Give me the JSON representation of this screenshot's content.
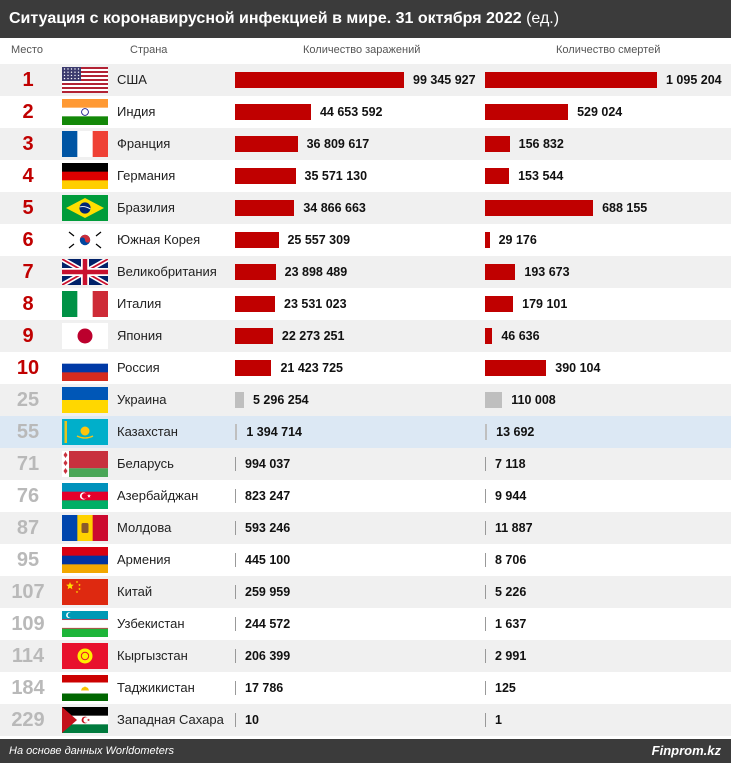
{
  "title": {
    "main": "Ситуация с коронавирусной инфекцией в мире. 31 октября 2022",
    "unit": "(ед.)"
  },
  "columns": {
    "rank": "Место",
    "country": "Страна",
    "cases": "Количество заражений",
    "deaths": "Количество смертей"
  },
  "footer": {
    "source": "На основе данных Worldometers",
    "brand": "Finprom.kz"
  },
  "colors": {
    "bar_top": "#c00000",
    "bar_other": "#bfbfbf",
    "rank_top": "#c00000",
    "rank_other": "#b9b9b9",
    "highlight_row": "#dce8f4",
    "header_bg": "#3b3b3b"
  },
  "chart_data": {
    "type": "bar",
    "categories": [
      "США",
      "Индия",
      "Франция",
      "Германия",
      "Бразилия",
      "Южная Корея",
      "Великобритания",
      "Италия",
      "Япония",
      "Россия",
      "Украина",
      "Казахстан",
      "Беларусь",
      "Азербайджан",
      "Молдова",
      "Армения",
      "Китай",
      "Узбекистан",
      "Кыргызстан",
      "Таджикистан",
      "Западная Сахара"
    ],
    "ranks": [
      1,
      2,
      3,
      4,
      5,
      6,
      7,
      8,
      9,
      10,
      25,
      55,
      71,
      76,
      87,
      95,
      107,
      109,
      114,
      184,
      229
    ],
    "flag_icons": [
      "flag-usa-icon",
      "flag-india-icon",
      "flag-france-icon",
      "flag-germany-icon",
      "flag-brazil-icon",
      "flag-south-korea-icon",
      "flag-uk-icon",
      "flag-italy-icon",
      "flag-japan-icon",
      "flag-russia-icon",
      "flag-ukraine-icon",
      "flag-kazakhstan-icon",
      "flag-belarus-icon",
      "flag-azerbaijan-icon",
      "flag-moldova-icon",
      "flag-armenia-icon",
      "flag-china-icon",
      "flag-uzbekistan-icon",
      "flag-kyrgyzstan-icon",
      "flag-tajikistan-icon",
      "flag-western-sahara-icon"
    ],
    "series": [
      {
        "name": "Количество заражений",
        "values": [
          99345927,
          44653592,
          36809617,
          35571130,
          34866663,
          25557309,
          23898489,
          23531023,
          22273251,
          21423725,
          5296254,
          1394714,
          994037,
          823247,
          593246,
          445100,
          259959,
          244572,
          206399,
          17786,
          10
        ]
      },
      {
        "name": "Количество смертей",
        "values": [
          1095204,
          529024,
          156832,
          153544,
          688155,
          29176,
          193673,
          179101,
          46636,
          390104,
          110008,
          13692,
          7118,
          9944,
          11887,
          8706,
          5226,
          1637,
          2991,
          125,
          1
        ]
      }
    ],
    "highlight_category": "Казахстан"
  }
}
